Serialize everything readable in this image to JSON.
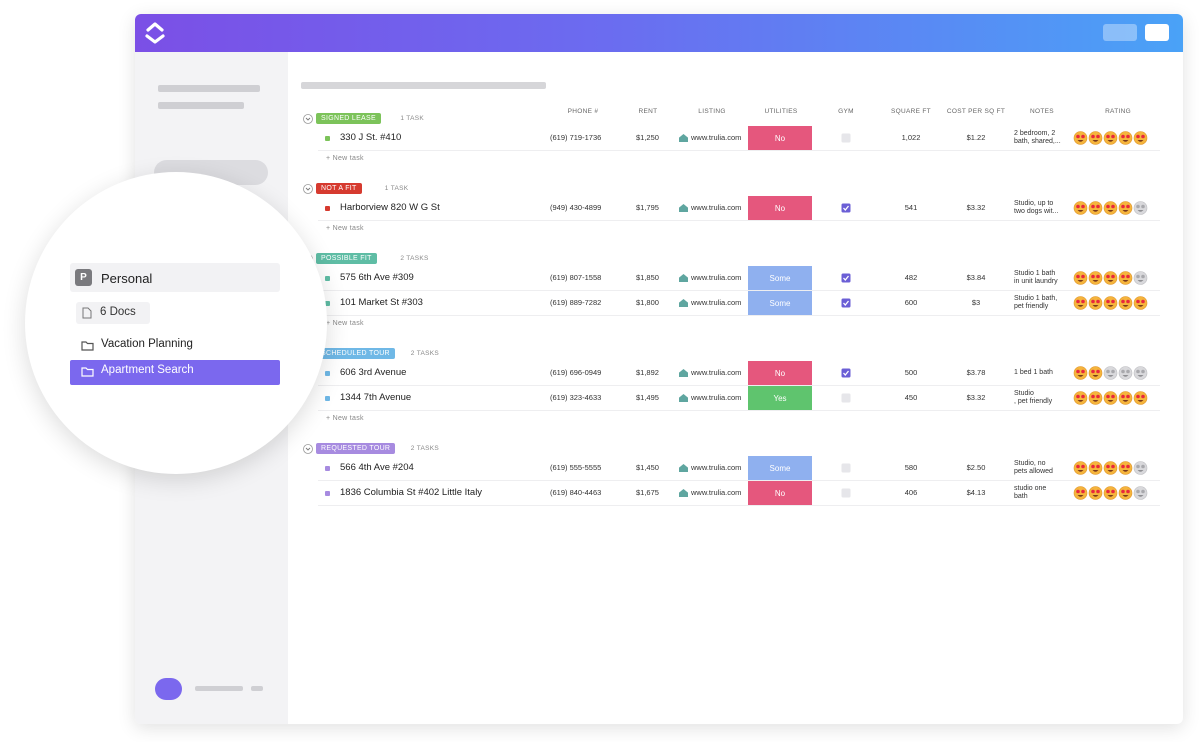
{
  "sidebar": {
    "space_initial": "P",
    "space": "Personal",
    "docs": "6 Docs",
    "folders": [
      "Vacation Planning",
      "Apartment Search"
    ],
    "selected_folder": 1
  },
  "columns": [
    "PHONE #",
    "RENT",
    "LISTING",
    "UTILITIES",
    "GYM",
    "SQUARE FT",
    "COST PER SQ FT",
    "NOTES",
    "RATING"
  ],
  "groups": [
    {
      "status": "SIGNED LEASE",
      "count": "1 TASK",
      "color": "#7cc35a",
      "new_task": "+ New task",
      "tasks": [
        {
          "name": "330 J St. #410",
          "phone": "(619) 719-1736",
          "rent": "$1,250",
          "listing": "www.trulia.com",
          "utilities": "No",
          "gym": false,
          "sqft": "1,022",
          "cost": "$1.22",
          "notes": [
            "2 bedroom, 2",
            "bath, shared,..."
          ],
          "rating": 5
        }
      ]
    },
    {
      "status": "NOT A FIT",
      "count": "1 TASK",
      "color": "#d63a2f",
      "new_task": "+ New task",
      "tasks": [
        {
          "name": "Harborview 820 W G St",
          "phone": "(949) 430-4899",
          "rent": "$1,795",
          "listing": "www.trulia.com",
          "utilities": "No",
          "gym": true,
          "sqft": "541",
          "cost": "$3.32",
          "notes": [
            "Studio, up to",
            "two dogs wit..."
          ],
          "rating": 4
        }
      ]
    },
    {
      "status": "POSSIBLE FIT",
      "count": "2 TASKS",
      "color": "#5fbda5",
      "new_task": "+ New task",
      "tasks": [
        {
          "name": "575 6th Ave #309",
          "phone": "(619) 807-1558",
          "rent": "$1,850",
          "listing": "www.trulia.com",
          "utilities": "Some",
          "gym": true,
          "sqft": "482",
          "cost": "$3.84",
          "notes": [
            "Studio 1 bath",
            "in unit laundry"
          ],
          "rating": 4
        },
        {
          "name": "101 Market St #303",
          "phone": "(619) 889-7282",
          "rent": "$1,800",
          "listing": "www.trulia.com",
          "utilities": "Some",
          "gym": true,
          "sqft": "600",
          "cost": "$3",
          "notes": [
            "Studio 1 bath,",
            "pet friendly"
          ],
          "rating": 5
        }
      ]
    },
    {
      "status": "SCHEDULED TOUR",
      "count": "2 TASKS",
      "color": "#6fb8e6",
      "new_task": "+ New task",
      "tasks": [
        {
          "name": "606 3rd Avenue",
          "phone": "(619) 696-0949",
          "rent": "$1,892",
          "listing": "www.trulia.com",
          "utilities": "No",
          "gym": true,
          "sqft": "500",
          "cost": "$3.78",
          "notes": [
            "1 bed 1 bath"
          ],
          "rating": 2
        },
        {
          "name": "1344 7th Avenue",
          "phone": "(619) 323-4633",
          "rent": "$1,495",
          "listing": "www.trulia.com",
          "utilities": "Yes",
          "gym": false,
          "sqft": "450",
          "cost": "$3.32",
          "notes": [
            "Studio",
            ", pet friendly"
          ],
          "rating": 5
        }
      ]
    },
    {
      "status": "REQUESTED TOUR",
      "count": "2 TASKS",
      "color": "#a78be0",
      "tasks": [
        {
          "name": "566 4th Ave #204",
          "phone": "(619) 555-5555",
          "rent": "$1,450",
          "listing": "www.trulia.com",
          "utilities": "Some",
          "gym": false,
          "sqft": "580",
          "cost": "$2.50",
          "notes": [
            "Studio, no",
            "pets allowed"
          ],
          "rating": 4
        },
        {
          "name": "1836 Columbia St #402 Little Italy",
          "phone": "(619) 840-4463",
          "rent": "$1,675",
          "listing": "www.trulia.com",
          "utilities": "No",
          "gym": false,
          "sqft": "406",
          "cost": "$4.13",
          "notes": [
            "studio one",
            "bath"
          ],
          "rating": 4
        }
      ]
    }
  ]
}
